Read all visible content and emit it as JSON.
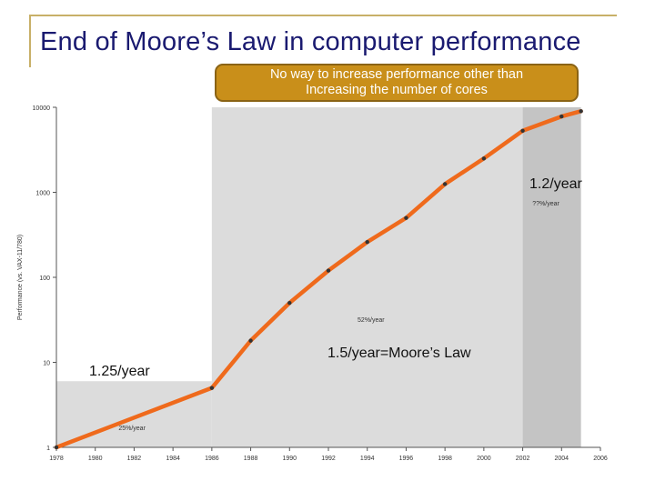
{
  "slide": {
    "title": "End of Moore’s Law in computer performance",
    "callout_line1": "No way to increase performance other than",
    "callout_line2": "Increasing the number of cores"
  },
  "colors": {
    "frame": "#c8b068",
    "title": "#1a1a70",
    "callout_fill": "#c98f1a",
    "series_line": "#ef6a1c",
    "shaded_region": "#dcdcdc",
    "dark_shaded_region": "#c4c4c4"
  },
  "annotations": {
    "rate_early": "1.25/year",
    "rate_moore": "1.5/year=Moore’s Law",
    "rate_late": "1.2/year"
  },
  "chart_data": {
    "type": "line",
    "title": "",
    "xlabel": "",
    "ylabel": "Performance (vs. VAX-11/780)",
    "log_scale_y": true,
    "xlim": [
      1978,
      2006
    ],
    "ylim": [
      1,
      10000
    ],
    "x_ticks": [
      "1978",
      "1980",
      "1982",
      "1984",
      "1986",
      "1988",
      "1990",
      "1992",
      "1994",
      "1996",
      "1998",
      "2000",
      "2002",
      "2004",
      "2006"
    ],
    "y_ticks": [
      "1",
      "10",
      "100",
      "1000",
      "10000"
    ],
    "growth_segments": [
      {
        "label": "25%/year",
        "from": 1978,
        "to": 1986
      },
      {
        "label": "52%/year",
        "from": 1986,
        "to": 2002
      },
      {
        "label": "??%/year",
        "from": 2002,
        "to": 2005
      }
    ],
    "series": [
      {
        "name": "",
        "x": [
          1978,
          1986,
          1988,
          1990,
          1992,
          1994,
          1996,
          1998,
          2000,
          2002,
          2004,
          2005
        ],
        "y": [
          1,
          5,
          18,
          50,
          120,
          260,
          500,
          1250,
          2500,
          5300,
          7800,
          9000
        ]
      }
    ]
  }
}
